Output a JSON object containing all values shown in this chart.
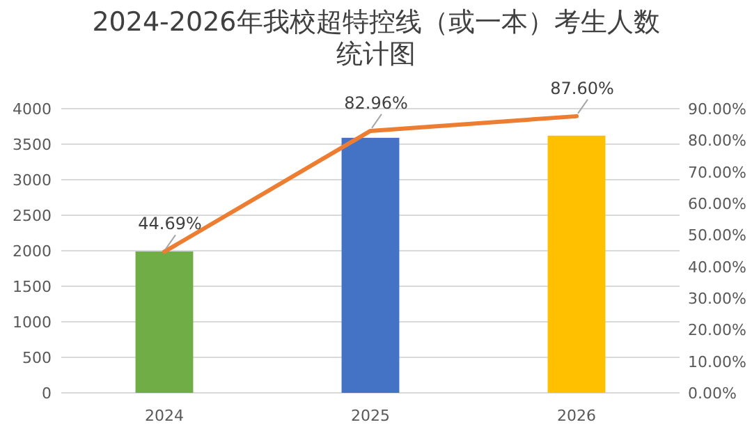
{
  "chart_data": {
    "type": "bar",
    "title": "2024-2026年我校超特控线（或一本）考生人数统计图",
    "categories": [
      "2024",
      "2025",
      "2026"
    ],
    "series": [
      {
        "values": [
          1990,
          3590,
          3620
        ],
        "colors": [
          "#70ad47",
          "#4472c4",
          "#ffc000"
        ]
      },
      {
        "type": "line",
        "axis": "y2",
        "color": "#ed7d31",
        "values": [
          44.69,
          82.96,
          87.6
        ],
        "value_labels": [
          "44.69%",
          "82.96%",
          "87.60%"
        ],
        "marker": "none"
      }
    ],
    "ylim": [
      0,
      4000
    ],
    "yticks": [
      0,
      500,
      1000,
      1500,
      2000,
      2500,
      3000,
      3500,
      4000
    ],
    "y2lim": [
      0,
      90
    ],
    "y2ticks": [
      {
        "value": 0,
        "label": "0.00%"
      },
      {
        "value": 10,
        "label": "10.00%"
      },
      {
        "value": 20,
        "label": "20.00%"
      },
      {
        "value": 30,
        "label": "30.00%"
      },
      {
        "value": 40,
        "label": "40.00%"
      },
      {
        "value": 50,
        "label": "50.00%"
      },
      {
        "value": 60,
        "label": "60.00%"
      },
      {
        "value": 70,
        "label": "70.00%"
      },
      {
        "value": 80,
        "label": "80.00%"
      },
      {
        "value": 90,
        "label": "90.00%"
      }
    ],
    "grid": "y"
  }
}
